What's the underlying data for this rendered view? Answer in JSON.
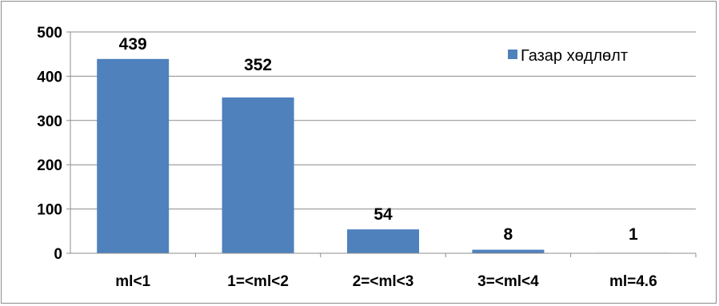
{
  "chart_data": {
    "type": "bar",
    "categories": [
      "ml<1",
      "1=<ml<2",
      "2=<ml<3",
      "3=<ml<4",
      "ml=4.6"
    ],
    "series": [
      {
        "name": "Газар хөдлөлт",
        "values": [
          439,
          352,
          54,
          8,
          1
        ],
        "color": "#4f81bd"
      }
    ],
    "ylim": [
      0,
      500
    ],
    "yticks": [
      0,
      100,
      200,
      300,
      400,
      500
    ],
    "grid": true,
    "legend": "top-right"
  }
}
